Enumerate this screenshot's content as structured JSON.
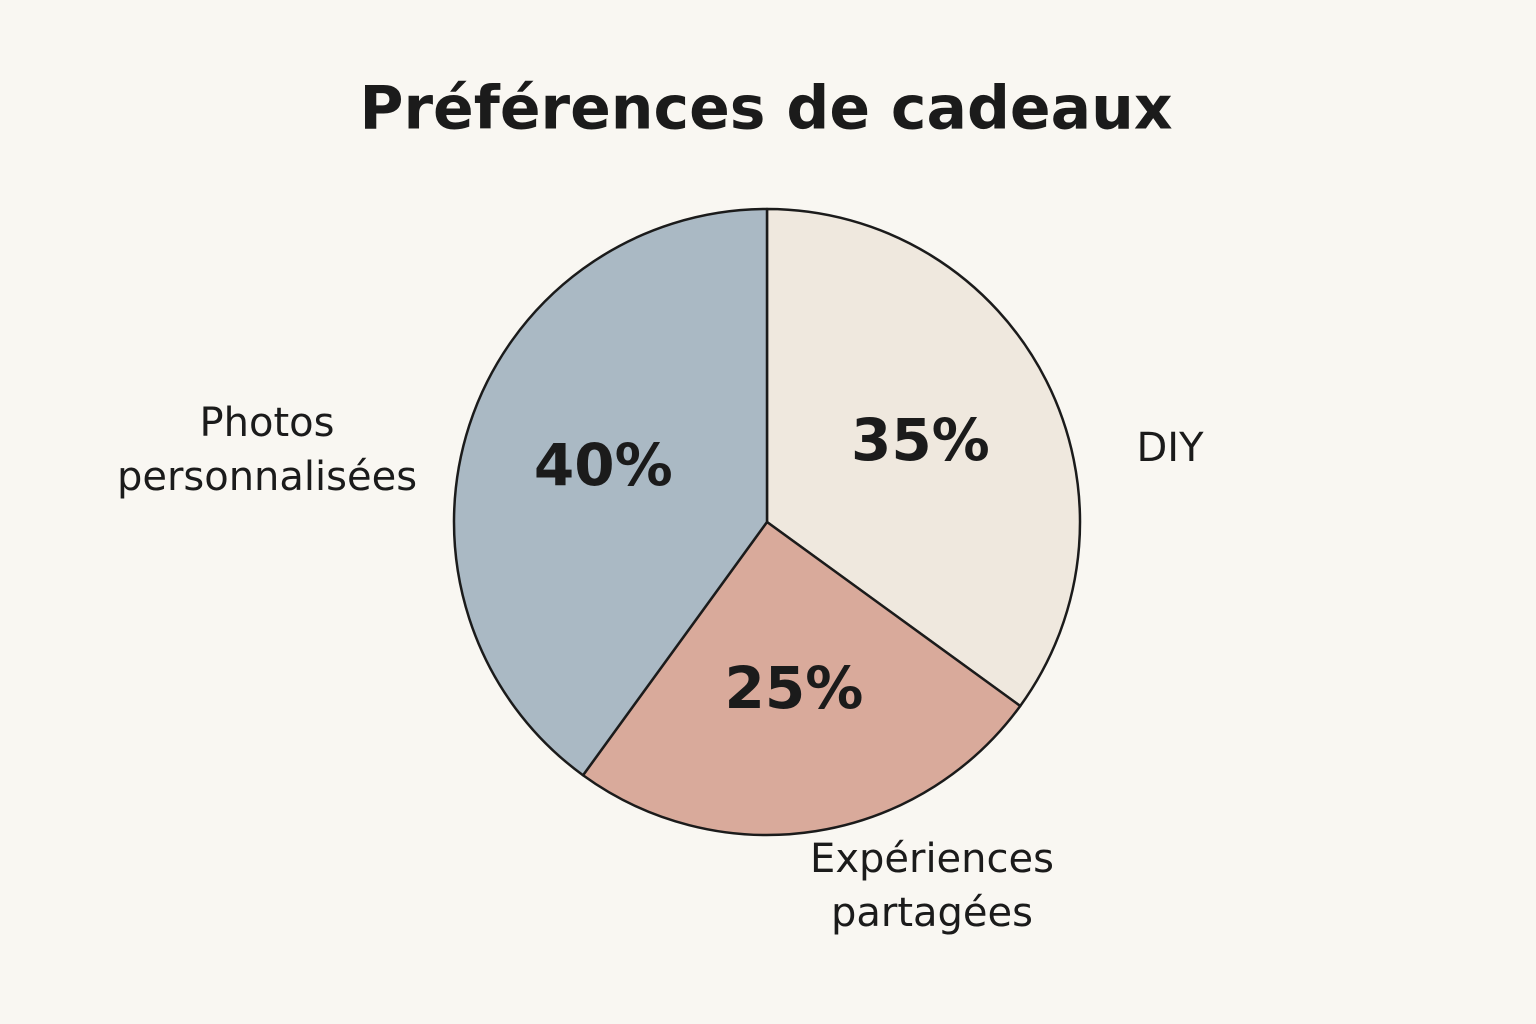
{
  "chart_data": {
    "type": "pie",
    "title": "Préférences de cadeaux",
    "categories": [
      "DIY",
      "Expériences partagées",
      "Photos personnalisées"
    ],
    "values": [
      35,
      25,
      40
    ],
    "value_labels": [
      "35%",
      "25%",
      "40%"
    ],
    "colors": [
      "#efe8de",
      "#d9aa9b",
      "#aab9c4"
    ]
  }
}
